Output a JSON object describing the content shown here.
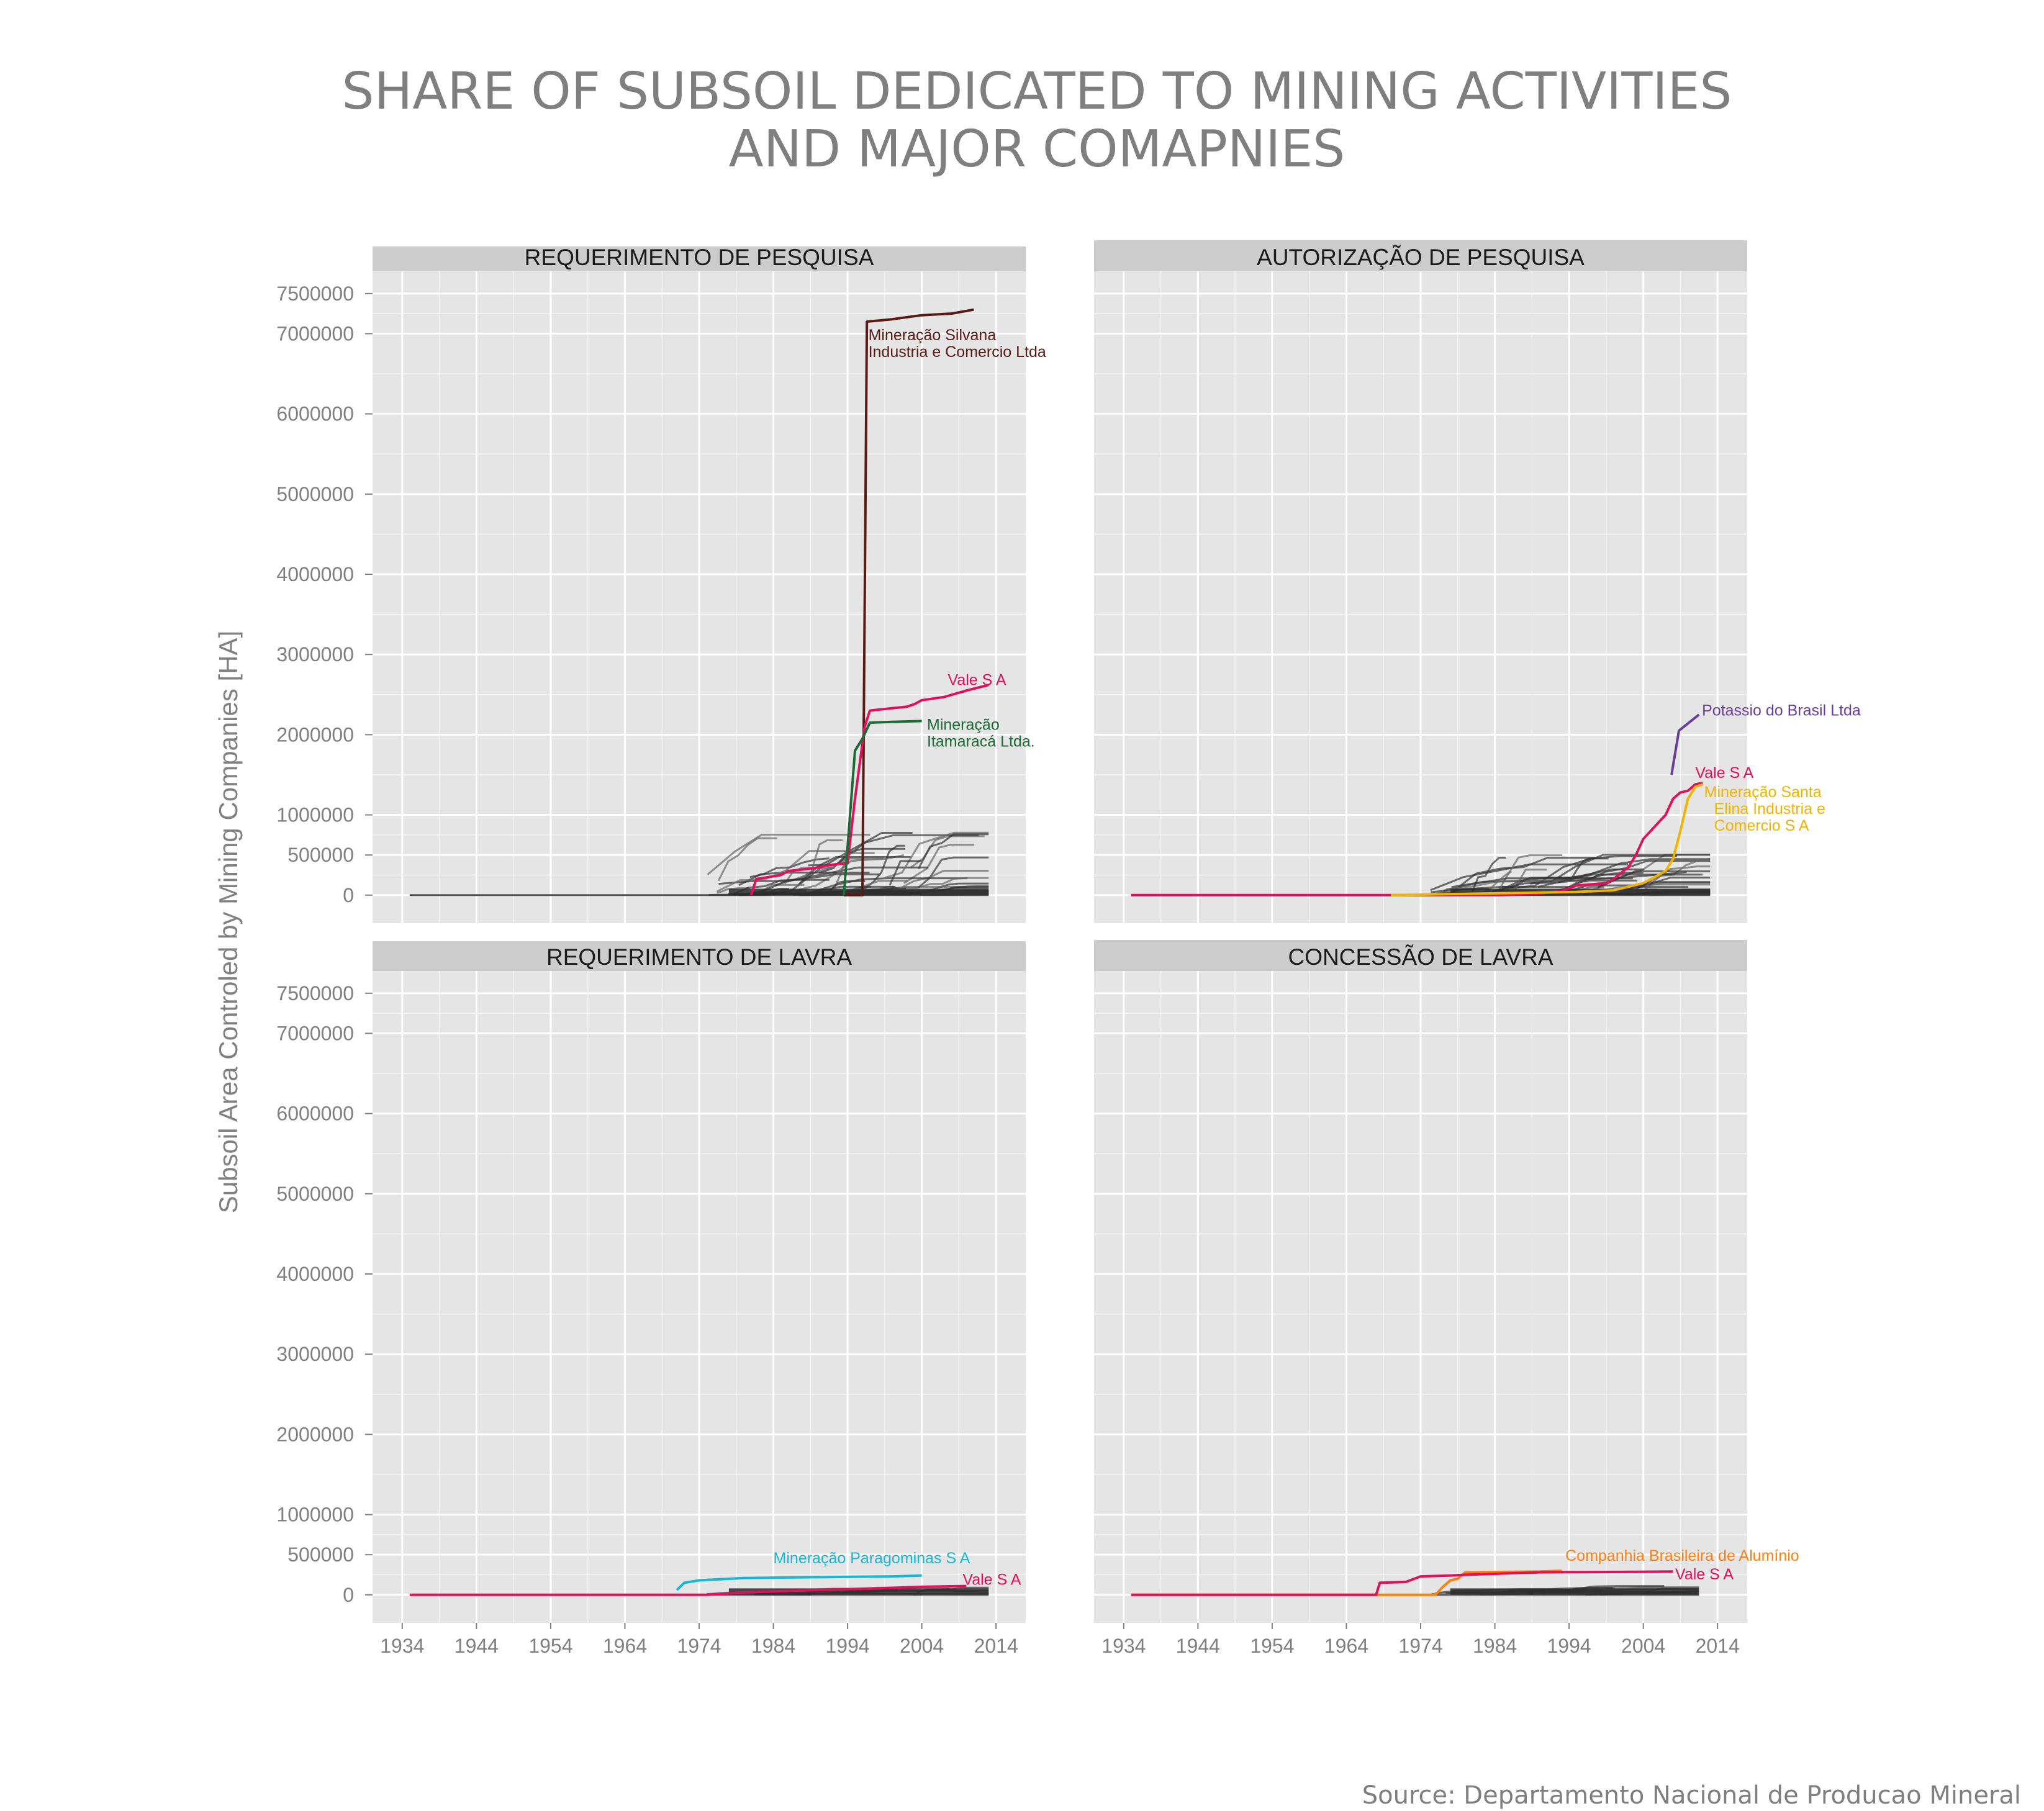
{
  "title": [
    "SHARE OF SUBSOIL DEDICATED TO MINING ACTIVITIES",
    "AND MAJOR COMAPNIES"
  ],
  "source": "Source: Departamento Nacional de Producao Mineral",
  "colors": {
    "panel_bg": "#e5e5e5",
    "strip_bg": "#cccccc",
    "grid": "#ffffff",
    "other_companies": "#333333"
  },
  "chart_data": {
    "type": "line",
    "facets": [
      "REQUERIMENTO DE PESQUISA",
      "AUTORIZAÇÃO DE PESQUISA",
      "REQUERIMENTO DE LAVRA",
      "CONCESSÃO DE LAVRA"
    ],
    "ylabel": "Subsoil Area Controled by Mining Companies  [HA]",
    "xlabel": "",
    "xlim": [
      1930,
      2018
    ],
    "ylim": [
      -350000,
      7700000
    ],
    "x_ticks": [
      "1934",
      "1944",
      "1954",
      "1964",
      "1974",
      "1984",
      "1994",
      "2004",
      "2014"
    ],
    "y_ticks": [
      "0",
      "500000",
      "1000000",
      "2000000",
      "3000000",
      "4000000",
      "5000000",
      "6000000",
      "7000000",
      "7500000"
    ],
    "grid": true,
    "panels": [
      {
        "facet": "REQUERIMENTO DE PESQUISA",
        "series": [
          {
            "name": "Mineração Silvana Industria e Comercio Ltda",
            "color": "#5a1a14",
            "x": [
              1993.5,
              1996.0,
              1996.6,
              2000,
              2004,
              2008,
              2011
            ],
            "y": [
              0,
              0,
              7150000,
              7180000,
              7230000,
              7250000,
              7300000
            ]
          },
          {
            "name": "Vale S A",
            "color": "#e0105a",
            "x": [
              1981,
              1981.7,
              1985,
              1986,
              1989,
              1992,
              1994,
              1995,
              1996.3,
              1997,
              1998,
              2002,
              2003,
              2004,
              2007,
              2010,
              2013
            ],
            "y": [
              0,
              200000,
              250000,
              300000,
              330000,
              380000,
              400000,
              1200000,
              2100000,
              2300000,
              2310000,
              2350000,
              2380000,
              2430000,
              2470000,
              2550000,
              2620000
            ]
          },
          {
            "name": "Mineração Itamaracá Ltda.",
            "color": "#1a6b34",
            "x": [
              1993.5,
              1995,
              1996,
              1997,
              2000,
              2004
            ],
            "y": [
              0,
              1800000,
              1950000,
              2150000,
              2160000,
              2170000
            ]
          }
        ],
        "labels": [
          {
            "text": [
              "Mineração Silvana",
              "Industria e Comercio Ltda"
            ],
            "color": "#5a1a14",
            "x": 1996.8,
            "y": 6920000
          },
          {
            "text": [
              "Vale S A"
            ],
            "color": "#e0105a",
            "x": 2007.5,
            "y": 2620000
          },
          {
            "text": [
              "Mineração",
              "Itamaracá Ltda."
            ],
            "color": "#1a6b34",
            "x": 2004.7,
            "y": 2060000
          }
        ]
      },
      {
        "facet": "AUTORIZAÇÃO DE PESQUISA",
        "series": [
          {
            "name": "Potassio do Brasil Ltda",
            "color": "#6a3d9a",
            "x": [
              2007.8,
              2008.8,
              2011.5
            ],
            "y": [
              1500000,
              2050000,
              2250000
            ]
          },
          {
            "name": "Vale S A",
            "color": "#e0105a",
            "x": [
              1935,
              1985,
              1990,
              1993,
              1995,
              1999,
              2000,
              2002,
              2003,
              2004,
              2005,
              2006,
              2007,
              2008,
              2009,
              2010,
              2011,
              2012
            ],
            "y": [
              0,
              0,
              20000,
              50000,
              120000,
              150000,
              200000,
              350000,
              500000,
              700000,
              800000,
              900000,
              1000000,
              1200000,
              1280000,
              1300000,
              1380000,
              1400000
            ]
          },
          {
            "name": "Mineração Santa Elina Industria e Comercio S A",
            "color": "#f0b400",
            "x": [
              1970,
              1995,
              2000,
              2004,
              2006,
              2007,
              2008,
              2009,
              2010,
              2011,
              2012
            ],
            "y": [
              0,
              40000,
              60000,
              150000,
              250000,
              300000,
              450000,
              800000,
              1200000,
              1350000,
              1380000
            ]
          }
        ],
        "labels": [
          {
            "text": [
              "Potassio do Brasil Ltda"
            ],
            "color": "#6a3d9a",
            "x": 2011.9,
            "y": 2240000
          },
          {
            "text": [
              "Vale S A"
            ],
            "color": "#e0105a",
            "x": 2011.0,
            "y": 1460000
          },
          {
            "text": [
              "Mineração Santa",
              "Elina Industria e",
              "Comercio S A"
            ],
            "color": "#f0b400",
            "x": 2012.2,
            "y": 1220000
          }
        ]
      },
      {
        "facet": "REQUERIMENTO DE LAVRA",
        "series": [
          {
            "name": "Mineração Paragominas S A",
            "color": "#17b8d6",
            "x": [
              1971,
              1972,
              1974,
              1980,
              1990,
              2000,
              2004
            ],
            "y": [
              60000,
              150000,
              180000,
              210000,
              220000,
              230000,
              240000
            ]
          },
          {
            "name": "Vale S A",
            "color": "#e0105a",
            "x": [
              1935,
              1975,
              1980,
              1990,
              1998,
              2004,
              2010
            ],
            "y": [
              0,
              0,
              30000,
              60000,
              80000,
              100000,
              110000
            ]
          }
        ],
        "labels": [
          {
            "text": [
              "Mineração Paragominas S A"
            ],
            "color": "#17b8d6",
            "x": 1984,
            "y": 395000
          },
          {
            "text": [
              "Vale S A"
            ],
            "color": "#e0105a",
            "x": 2009.5,
            "y": 125000
          }
        ]
      },
      {
        "facet": "CONCESSÃO DE LAVRA",
        "series": [
          {
            "name": "Companhia Brasileira de Alumínio",
            "color": "#ff7f0e",
            "x": [
              1935,
              1976,
              1977,
              1978,
              1979,
              1980,
              1990,
              1993
            ],
            "y": [
              0,
              0,
              100000,
              180000,
              200000,
              280000,
              290000,
              300000
            ]
          },
          {
            "name": "Vale S A",
            "color": "#e0105a",
            "x": [
              1935,
              1968,
              1968.5,
              1972,
              1974,
              1978,
              1980,
              1990,
              2000,
              2008
            ],
            "y": [
              0,
              0,
              150000,
              160000,
              230000,
              240000,
              250000,
              280000,
              285000,
              290000
            ]
          }
        ],
        "labels": [
          {
            "text": [
              "Companhia Brasileira de Alumínio"
            ],
            "color": "#ff7f0e",
            "x": 1993.5,
            "y": 425000
          },
          {
            "text": [
              "Vale S A"
            ],
            "color": "#e0105a",
            "x": 2008.3,
            "y": 190000
          }
        ]
      }
    ],
    "other_companies_note": "many gray lines for other mining companies (values mostly below 1,600,000 ha)"
  }
}
